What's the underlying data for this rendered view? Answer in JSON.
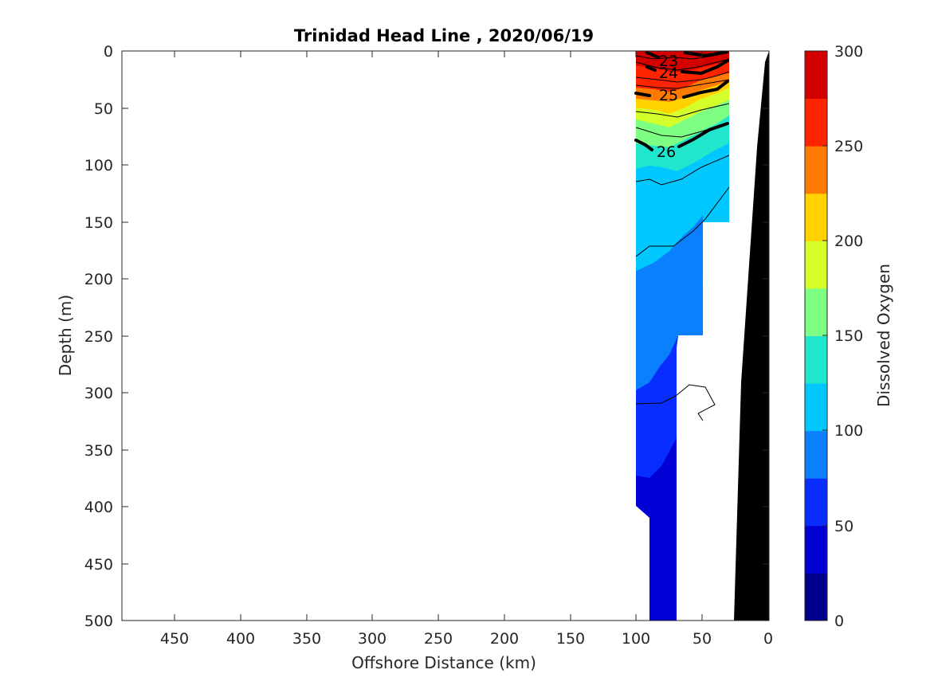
{
  "chart_data": {
    "type": "contour",
    "title": "Trinidad Head Line , 2020/06/19",
    "xlabel": "Offshore Distance (km)",
    "ylabel": "Depth (m)",
    "xlim": [
      490,
      0
    ],
    "ylim": [
      0,
      500
    ],
    "x_direction": "reverse",
    "y_direction": "reverse (depth increases downward)",
    "x_ticks": [
      "450",
      "400",
      "350",
      "300",
      "250",
      "200",
      "150",
      "100",
      "50",
      "0"
    ],
    "y_ticks": [
      "0",
      "50",
      "100",
      "150",
      "200",
      "250",
      "300",
      "350",
      "400",
      "450",
      "500"
    ],
    "colorbar": {
      "label": "Dissolved Oxygen",
      "range": [
        0,
        300
      ],
      "step": 25,
      "ticks": [
        "0",
        "50",
        "100",
        "150",
        "200",
        "250",
        "300"
      ],
      "colors": [
        "#00008f",
        "#0000d5",
        "#0a2dff",
        "#0a80ff",
        "#00c8ff",
        "#1fe6cc",
        "#7dff83",
        "#d4ff2b",
        "#ffd200",
        "#ff7a00",
        "#ff2400",
        "#d40000"
      ]
    },
    "oxygen_bands": [
      {
        "range": [
          250,
          300
        ],
        "depth_top": 0,
        "depth_bottom": 35
      },
      {
        "range": [
          200,
          250
        ],
        "depth_top": 35,
        "depth_bottom": 70
      },
      {
        "range": [
          150,
          200
        ],
        "depth_top": 70,
        "depth_bottom": 100
      },
      {
        "range": [
          100,
          150
        ],
        "depth_top": 100,
        "depth_bottom": 190
      },
      {
        "range": [
          75,
          100
        ],
        "depth_top": 190,
        "depth_bottom": 300
      },
      {
        "range": [
          50,
          75
        ],
        "depth_top": 300,
        "depth_bottom": 375
      },
      {
        "range": [
          25,
          50
        ],
        "depth_top": 375,
        "depth_bottom": 500
      }
    ],
    "density_contours": [
      {
        "label": "23",
        "x": 80,
        "depth": 8
      },
      {
        "label": "24",
        "x": 80,
        "depth": 18
      },
      {
        "label": "25",
        "x": 80,
        "depth": 38
      },
      {
        "label": "26",
        "x": 80,
        "depth": 88
      }
    ],
    "data_extent_km": [
      100,
      30
    ],
    "bathymetry": "black seafloor wedge near 0–25 km"
  }
}
